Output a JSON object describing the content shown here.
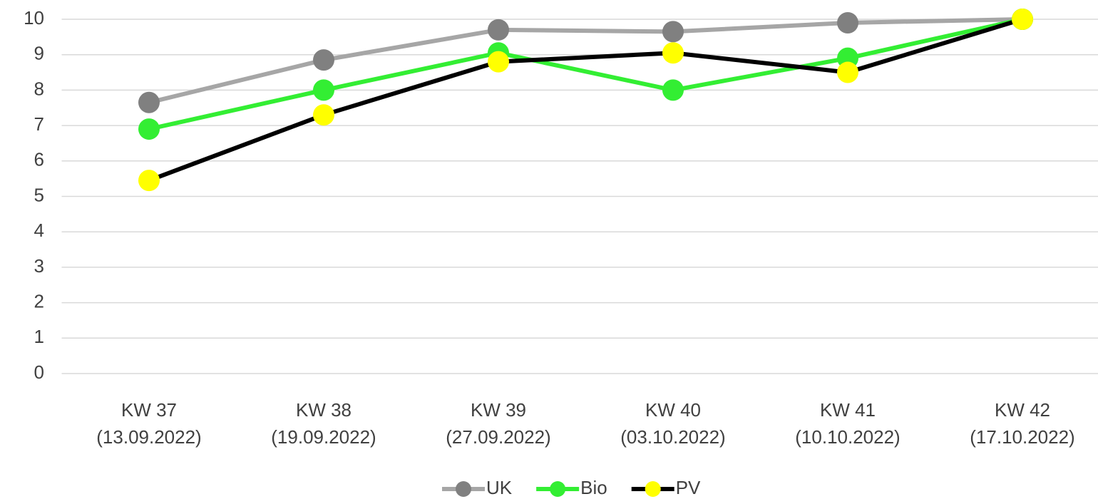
{
  "chart_data": {
    "type": "line",
    "categories": [
      [
        "KW 37",
        "(13.09.2022)"
      ],
      [
        "KW 38",
        "(19.09.2022)"
      ],
      [
        "KW 39",
        "(27.09.2022)"
      ],
      [
        "KW 40",
        "(03.10.2022)"
      ],
      [
        "KW 41",
        "(10.10.2022)"
      ],
      [
        "KW 42",
        "(17.10.2022)"
      ]
    ],
    "series": [
      {
        "name": "UK",
        "color": "#a6a6a6",
        "marker_color": "#808080",
        "values": [
          7.65,
          8.85,
          9.7,
          9.65,
          9.9,
          10
        ]
      },
      {
        "name": "Bio",
        "color": "#33ee33",
        "marker_color": "#33ee33",
        "values": [
          6.9,
          8.0,
          9.05,
          8.0,
          8.9,
          10
        ]
      },
      {
        "name": "PV",
        "color": "#000000",
        "marker_color": "#ffff00",
        "values": [
          5.45,
          7.3,
          8.8,
          9.05,
          8.5,
          10
        ]
      }
    ],
    "ylim": [
      0,
      10
    ],
    "yticks": [
      0,
      1,
      2,
      3,
      4,
      5,
      6,
      7,
      8,
      9,
      10
    ],
    "grid": true,
    "legend": "bottom"
  }
}
